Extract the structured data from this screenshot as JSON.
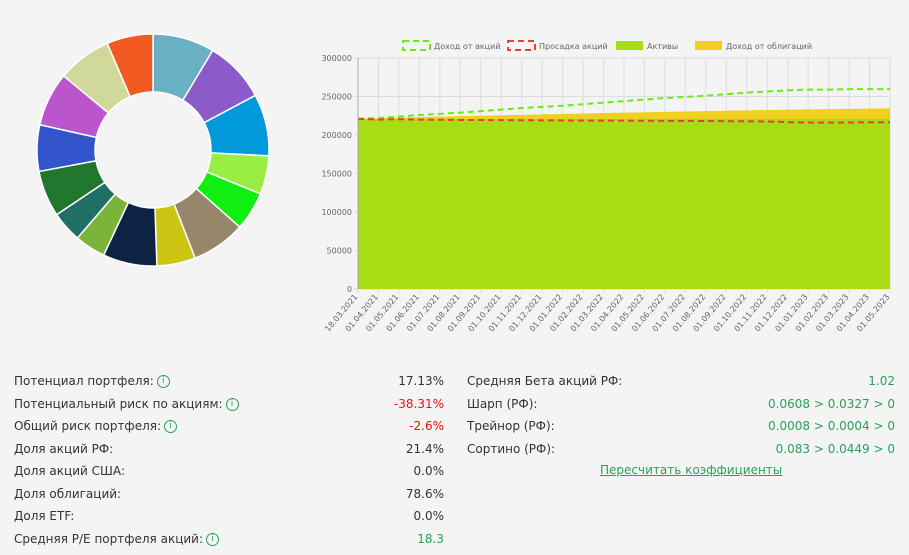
{
  "donut": {
    "colors": [
      "#6ab0c4",
      "#8a5bc9",
      "#0099d9",
      "#99ee44",
      "#11ee11",
      "#96866a",
      "#ccc514",
      "#0d2344",
      "#7ab53a",
      "#1f6f66",
      "#22772e",
      "#3355cc",
      "#bb55cc",
      "#d0d89a",
      "#f25a22"
    ],
    "values": [
      8,
      8,
      8,
      5,
      5,
      7,
      5,
      7,
      4,
      4,
      6,
      6,
      7,
      7,
      6
    ]
  },
  "chart_data": {
    "type": "line",
    "ylim": [
      0,
      300000
    ],
    "yticks": [
      "0",
      "50000",
      "100000",
      "150000",
      "200000",
      "250000",
      "300000"
    ],
    "grid": true,
    "legend_position": "top",
    "x": [
      "18.03.2021",
      "01.04.2021",
      "01.05.2021",
      "01.06.2021",
      "01.07.2021",
      "01.08.2021",
      "01.09.2021",
      "01.10.2021",
      "01.11.2021",
      "01.12.2021",
      "01.01.2022",
      "01.02.2022",
      "01.03.2022",
      "01.04.2022",
      "01.05.2022",
      "01.06.2022",
      "01.07.2022",
      "01.08.2022",
      "01.09.2022",
      "01.10.2022",
      "01.11.2022",
      "01.12.2022",
      "01.01.2023",
      "01.02.2023",
      "01.03.2023",
      "01.04.2023",
      "01.05.2023"
    ],
    "series": [
      {
        "name": "Доход от акций",
        "style": "dashed",
        "color": "#66ee11",
        "values": [
          221000,
          222000,
          224000,
          226000,
          227500,
          229000,
          231000,
          233000,
          235000,
          236500,
          238000,
          240000,
          242000,
          244000,
          246000,
          248000,
          249500,
          251000,
          253000,
          255000,
          256500,
          258000,
          259000,
          259000,
          259500,
          259500,
          259500
        ]
      },
      {
        "name": "Просадка акций",
        "style": "dashed",
        "color": "#f03c3c",
        "values": [
          221000,
          220000,
          220500,
          220000,
          219800,
          219500,
          219400,
          219300,
          219200,
          219000,
          218900,
          218800,
          218700,
          218600,
          218500,
          218400,
          218300,
          218200,
          218000,
          217800,
          217500,
          216800,
          216000,
          216000,
          216200,
          216500,
          216500
        ]
      },
      {
        "name": "Активы",
        "style": "area",
        "color": "#a8dc14",
        "values": [
          221000,
          221000,
          221000,
          221000,
          221000,
          221000,
          221000,
          221000,
          221000,
          221000,
          221000,
          221000,
          221000,
          221000,
          221000,
          221000,
          221000,
          221000,
          221000,
          221000,
          221000,
          221000,
          221000,
          221000,
          221000,
          221000,
          221000
        ]
      },
      {
        "name": "Доход от облигаций",
        "style": "area",
        "color": "#f0d020",
        "values": [
          221000,
          221800,
          222500,
          223200,
          223800,
          224500,
          225000,
          225600,
          226200,
          226800,
          227300,
          228000,
          228500,
          229000,
          229500,
          230000,
          230500,
          231000,
          231500,
          232000,
          232500,
          233000,
          233300,
          233600,
          233900,
          234200,
          234500
        ]
      }
    ]
  },
  "left": [
    {
      "label": "Потенциал портфеля:",
      "info": true,
      "value": "17.13%",
      "cls": ""
    },
    {
      "label": "Потенциальный риск по акциям:",
      "info": true,
      "value": "-38.31%",
      "cls": "r"
    },
    {
      "label": "Общий риск портфеля:",
      "info": true,
      "value": "-2.6%",
      "cls": "r"
    },
    {
      "label": "Доля акций РФ:",
      "info": false,
      "value": "21.4%",
      "cls": ""
    },
    {
      "label": "Доля акций США:",
      "info": false,
      "value": "0.0%",
      "cls": ""
    },
    {
      "label": "Доля облигаций:",
      "info": false,
      "value": "78.6%",
      "cls": ""
    },
    {
      "label": "Доля ETF:",
      "info": false,
      "value": "0.0%",
      "cls": ""
    },
    {
      "label": "Средняя P/E портфеля акций:",
      "info": true,
      "value": "18.3",
      "cls": "g"
    }
  ],
  "right": [
    {
      "label": "Средняя Бета акций РФ:",
      "value": "1.02"
    },
    {
      "label": "Шарп (РФ):",
      "value": "0.0608 > 0.0327 > 0"
    },
    {
      "label": "Трейнор (РФ):",
      "value": "0.0008 > 0.0004 > 0"
    },
    {
      "label": "Сортино (РФ):",
      "value": "0.083 > 0.0449 > 0"
    }
  ],
  "recalc_link": "Пересчитать коэффициенты",
  "info_glyph": "i"
}
